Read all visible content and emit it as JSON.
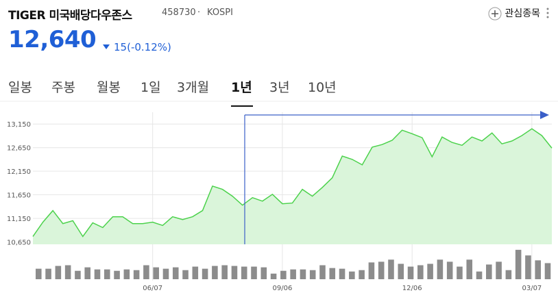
{
  "header": {
    "name": "TIGER 미국배당다우존스",
    "code": "458730",
    "separator": "·",
    "market": "KOSPI",
    "button": "관심종목"
  },
  "quote": {
    "price": "12,640",
    "change": "15(-0.12%)"
  },
  "tabs": [
    "일봉",
    "주봉",
    "월봉",
    "1일",
    "3개월",
    "1년",
    "3년",
    "10년"
  ],
  "selected_tab": 5,
  "chart_data": [
    {
      "type": "area",
      "color": "#4cd24c",
      "fill": "#daf5da",
      "grid": true,
      "categories": [
        null,
        null,
        null,
        null,
        null,
        null,
        null,
        null,
        null,
        null,
        null,
        null,
        "06/07",
        null,
        null,
        null,
        null,
        null,
        null,
        null,
        null,
        null,
        null,
        null,
        null,
        "09/06",
        null,
        null,
        null,
        null,
        null,
        null,
        null,
        null,
        null,
        null,
        null,
        null,
        "12/06",
        null,
        null,
        null,
        null,
        null,
        null,
        null,
        null,
        null,
        null,
        null,
        "03/07",
        null,
        null
      ],
      "values": [
        10765,
        11070,
        11315,
        11040,
        11100,
        10765,
        11055,
        10955,
        11185,
        11185,
        11040,
        11040,
        11070,
        11000,
        11185,
        11125,
        11185,
        11315,
        11835,
        11765,
        11620,
        11430,
        11590,
        11515,
        11660,
        11460,
        11475,
        11765,
        11620,
        11805,
        12010,
        12470,
        12400,
        12285,
        12660,
        12715,
        12805,
        13020,
        12945,
        12860,
        12455,
        12875,
        12760,
        12700,
        12875,
        12790,
        12960,
        12730,
        12790,
        12905,
        13050,
        12905,
        12640
      ],
      "ylim": [
        10600,
        13400
      ],
      "yticks": [
        {
          "value": 10650,
          "label": "10,650"
        },
        {
          "value": 11150,
          "label": "11,150"
        },
        {
          "value": 11650,
          "label": "11,650"
        },
        {
          "value": 12150,
          "label": "12,150"
        },
        {
          "value": 12650,
          "label": "12,650"
        },
        {
          "value": 13150,
          "label": "13,150"
        }
      ]
    },
    {
      "type": "bar",
      "color": "#8c8c8c",
      "ylim": [
        0,
        45
      ],
      "values": [
        15,
        15,
        19,
        20,
        12,
        17,
        14,
        14,
        12,
        14,
        13,
        20,
        17,
        15,
        17,
        13,
        18,
        15,
        19,
        20,
        19,
        18,
        18,
        17,
        8,
        12,
        14,
        14,
        13,
        20,
        16,
        15,
        11,
        13,
        24,
        25,
        28,
        22,
        18,
        20,
        22,
        28,
        25,
        18,
        28,
        11,
        21,
        25,
        13,
        42,
        34,
        27,
        23
      ]
    }
  ]
}
